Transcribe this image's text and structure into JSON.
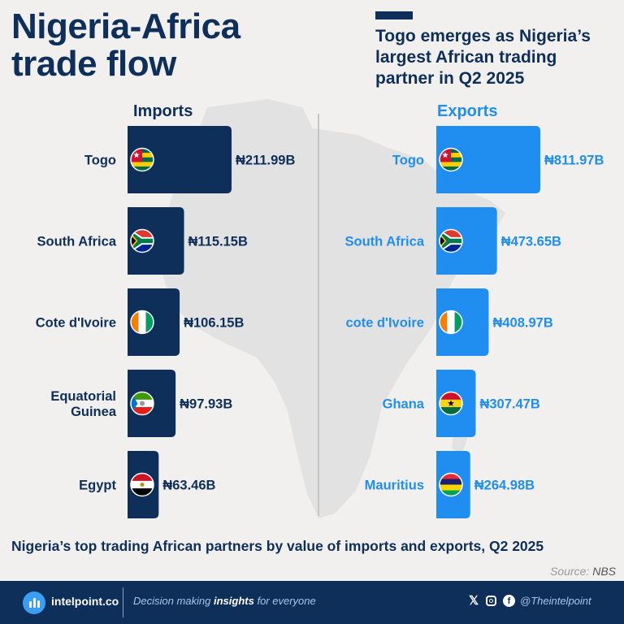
{
  "title": "Nigeria-Africa\ntrade flow",
  "subtitle": "Togo emerges as Nigeria’s largest African trading partner in Q2 2025",
  "colors": {
    "imports": "#0d2f5a",
    "exports": "#1f8ef0",
    "imports_label": "#0d2f5a",
    "exports_label": "#1f8ef0"
  },
  "chart_data": [
    {
      "type": "bar",
      "orientation": "horizontal",
      "title": "Imports",
      "unit": "₦ billion",
      "categories": [
        "Togo",
        "South Africa",
        "Cote d'Ivoire",
        "Equatorial Guinea",
        "Egypt"
      ],
      "category_labels": [
        [
          "Togo"
        ],
        [
          "South Africa"
        ],
        [
          "Cote d'Ivoire"
        ],
        [
          "Equatorial",
          "Guinea"
        ],
        [
          "Egypt"
        ]
      ],
      "values": [
        211.99,
        115.15,
        106.15,
        97.93,
        63.46
      ],
      "value_labels": [
        "₦211.99B",
        "₦115.15B",
        "₦106.15B",
        "₦97.93B",
        "₦63.46B"
      ],
      "flags": [
        "togo",
        "south-africa",
        "cote-divoire",
        "equatorial-guinea",
        "egypt"
      ]
    },
    {
      "type": "bar",
      "orientation": "horizontal",
      "title": "Exports",
      "unit": "₦ billion",
      "categories": [
        "Togo",
        "South Africa",
        "cote d'Ivoire",
        "Ghana",
        "Mauritius"
      ],
      "category_labels": [
        [
          "Togo"
        ],
        [
          "South Africa"
        ],
        [
          "cote d'Ivoire"
        ],
        [
          "Ghana"
        ],
        [
          "Mauritius"
        ]
      ],
      "values": [
        811.97,
        473.65,
        408.97,
        307.47,
        264.98
      ],
      "value_labels": [
        "₦811.97B",
        "₦473.65B",
        "₦408.97B",
        "₦307.47B",
        "₦264.98B"
      ],
      "flags": [
        "togo",
        "south-africa",
        "cote-divoire",
        "ghana",
        "mauritius"
      ]
    }
  ],
  "caption": "Nigeria’s top trading African partners by value of imports and exports, Q2 2025",
  "source": {
    "label": "Source:",
    "value": "NBS"
  },
  "footer": {
    "brand": "intelpoint.co",
    "tagline_pre": "Decision making ",
    "tagline_bold": "insights",
    "tagline_post": " for everyone",
    "handle": "@Theintelpoint",
    "social_icons": [
      "x-icon",
      "instagram-icon",
      "facebook-icon"
    ]
  }
}
